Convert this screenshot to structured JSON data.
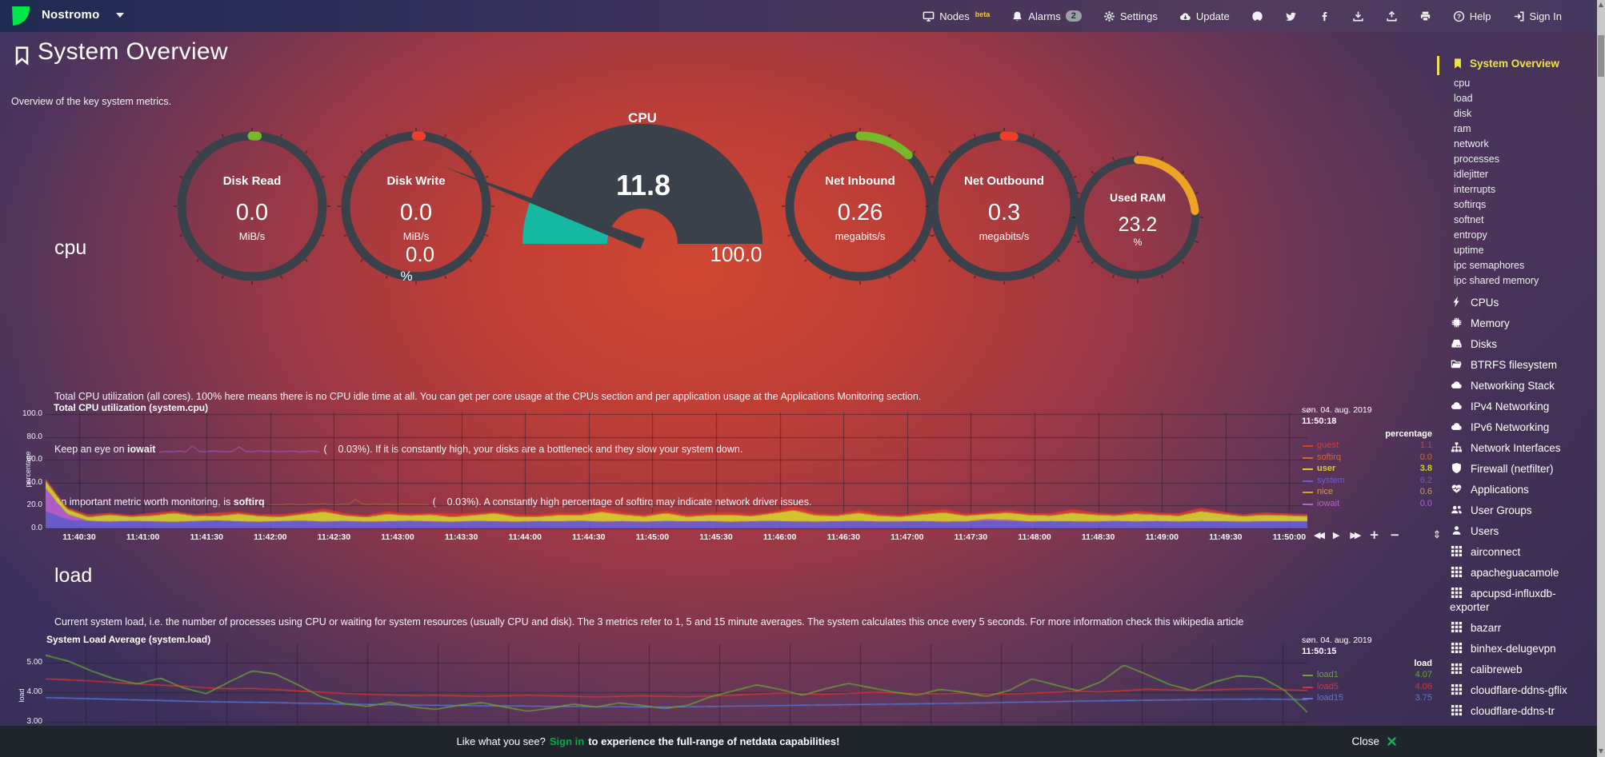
{
  "navbar": {
    "hostname": "Nostromo",
    "items": [
      {
        "label": "Nodes",
        "icon": "monitor",
        "sup": "beta"
      },
      {
        "label": "Alarms",
        "icon": "bell",
        "count": "2"
      },
      {
        "label": "Settings",
        "icon": "gear"
      },
      {
        "label": "Update",
        "icon": "cloud-down"
      },
      {
        "icon": "github"
      },
      {
        "icon": "twitter"
      },
      {
        "icon": "facebook"
      },
      {
        "icon": "download"
      },
      {
        "icon": "upload"
      },
      {
        "icon": "print"
      },
      {
        "label": "Help",
        "icon": "question"
      },
      {
        "label": "Sign In",
        "icon": "signin"
      }
    ]
  },
  "header": {
    "title": "System Overview",
    "subtitle": "Overview of the key system metrics."
  },
  "gauges": [
    {
      "type": "ring",
      "title": "Disk Read",
      "value": "0.0",
      "unit": "MiB/s",
      "color": "#76b82a",
      "fraction": 0.012
    },
    {
      "type": "ring",
      "title": "Disk Write",
      "value": "0.0",
      "unit": "MiB/s",
      "color": "#ee4028",
      "fraction": 0.012
    },
    {
      "type": "gauge",
      "title": "CPU",
      "value": "11.8",
      "unit": "%",
      "min": "0.0",
      "max": "100.0",
      "color": "#17b8a2",
      "fraction": 0.118
    },
    {
      "type": "ring",
      "title": "Net Inbound",
      "value": "0.26",
      "unit": "megabits/s",
      "color": "#76b82a",
      "fraction": 0.12
    },
    {
      "type": "ring",
      "title": "Net Outbound",
      "value": "0.3",
      "unit": "megabits/s",
      "color": "#ee4028",
      "fraction": 0.022
    },
    {
      "type": "ring",
      "title": "Used RAM",
      "value": "23.2",
      "unit": "%",
      "color": "#eda324",
      "fraction": 0.232,
      "small": true
    }
  ],
  "sections": {
    "cpu": {
      "heading": "cpu",
      "line1": "Total CPU utilization (all cores). 100% here means there is no CPU idle time at all. You can get per core usage at the CPUs section and per application usage at the Applications Monitoring section.",
      "line2": {
        "prefix": "Keep an eye on ",
        "metric": "iowait",
        "suffix": "(    0.03%). If it is constantly high, your disks are a bottleneck and they slow your system down."
      },
      "line3": {
        "prefix": "An important metric worth monitoring, is ",
        "metric": "softirq",
        "suffix": "(    0.03%). A constantly high percentage of softirq may indicate network driver issues."
      },
      "iowait_spark": {
        "color": "#b75fd1",
        "samples": [
          0.3,
          0.5,
          0.4,
          0.6,
          0.4,
          2.6,
          0.5,
          0.4,
          0.7,
          0.5,
          0.4,
          0.6,
          2.2,
          0.5,
          0.4,
          0.8,
          0.5,
          0.6,
          0.4,
          0.5,
          0.7,
          0.4,
          0.5,
          0.6,
          0.4
        ]
      },
      "softirq_spark": {
        "color": "#cf6a2c",
        "samples": [
          0.3,
          0.4,
          0.3,
          0.5,
          0.4,
          0.3,
          0.5,
          0.4,
          0.6,
          0.4,
          0.3,
          0.5,
          0.4,
          2.4,
          0.5,
          0.4,
          0.6,
          0.4,
          0.5,
          0.3,
          0.6,
          0.4,
          0.5,
          0.4,
          0.3
        ]
      }
    },
    "load": {
      "heading": "load",
      "line1": "Current system load, i.e. the number of processes using CPU or waiting for system resources (usually CPU and disk). The 3 metrics refer to 1, 5 and 15 minute averages. The system calculates this once every 5 seconds. For more information check this wikipedia article"
    }
  },
  "chart_data": [
    {
      "type": "area",
      "title": "Total CPU utilization (system.cpu)",
      "axis_label": "percentage",
      "legend_header": "percentage",
      "date": "søn. 04. aug. 2019",
      "time": "11:50:18",
      "ylim": [
        0,
        100
      ],
      "yticks": [
        "100.0",
        "80.0",
        "60.0",
        "40.0",
        "20.0",
        "0.0"
      ],
      "x_labels": [
        "11:40:30",
        "11:41:00",
        "11:41:30",
        "11:42:00",
        "11:42:30",
        "11:43:00",
        "11:43:30",
        "11:44:00",
        "11:44:30",
        "11:45:00",
        "11:45:30",
        "11:46:00",
        "11:46:30",
        "11:47:00",
        "11:47:30",
        "11:48:00",
        "11:48:30",
        "11:49:00",
        "11:49:30",
        "11:50:00"
      ],
      "stack_order": [
        "system",
        "iowait",
        "user",
        "nice",
        "softirq",
        "guest"
      ],
      "toolbox": [
        "backward",
        "play",
        "forward",
        "zoom-in",
        "zoom-out",
        "resize"
      ],
      "series": [
        {
          "name": "guest",
          "color": "#e0392e",
          "value": "1.1",
          "samples": [
            1.4,
            0.9,
            1.6,
            1.1,
            0.8,
            1.9,
            1.2,
            0.9,
            2.6,
            1.3,
            1.0,
            1.7,
            1.1,
            2.2,
            1.4,
            0.9,
            1.8,
            1.2,
            1.0,
            2.4,
            1.3,
            0.9,
            1.6,
            1.1,
            1.9,
            1.2,
            2.8,
            1.5,
            1.0,
            1.7,
            1.1,
            1.4,
            2.1,
            1.2,
            0.9,
            2.9,
            1.4,
            1.0,
            1.8,
            1.2,
            0.9,
            1.6,
            2.3,
            1.3,
            1.0,
            1.7,
            1.2,
            1.5,
            2.6,
            1.4,
            1.0,
            1.8,
            1.3,
            1.6,
            2.4,
            1.5,
            1.1,
            1.7,
            1.2,
            1.3
          ]
        },
        {
          "name": "softirq",
          "color": "#cf6a2c",
          "value": "0.0",
          "samples": [
            0.3,
            0.2,
            0.3,
            0.2,
            0.3,
            0.2,
            0.3,
            0.2,
            0.3,
            0.2
          ]
        },
        {
          "name": "user",
          "color": "#d6cf2e",
          "value": "3.8",
          "bold": true,
          "samples": [
            6.5,
            4.2,
            3.2,
            5.8,
            3.6,
            4.8,
            7.5,
            4.2,
            3.5,
            6.4,
            4.8,
            3.6,
            5.5,
            8.5,
            4.6,
            3.8,
            6.2,
            4.4,
            5.6,
            3.9,
            4.8,
            6.8,
            4.2,
            3.6,
            5.2,
            4.6,
            8.2,
            5.4,
            4.2,
            6.6,
            3.8,
            4.9,
            5.8,
            4.3,
            6.4,
            9.6,
            5.2,
            4.4,
            6.8,
            4.6,
            3.9,
            5.6,
            7.8,
            4.8,
            4.2,
            6.2,
            5.4,
            4.6,
            7.2,
            5.8,
            4.4,
            6.6,
            5.2,
            4.8,
            8.4,
            6.2,
            4.6,
            5.4,
            4.9,
            4.2
          ]
        },
        {
          "name": "system",
          "color": "#6a5ed6",
          "value": "6.2",
          "samples": [
            15,
            7.5,
            6.2,
            5.8,
            6.4,
            6.0,
            5.6,
            6.3,
            6.8,
            6.1,
            5.7,
            6.2,
            6.6,
            5.9,
            6.3,
            5.8,
            6.1,
            6.5,
            6.0,
            5.7,
            6.4,
            6.1,
            5.8,
            6.3,
            6.0,
            6.6,
            5.9,
            6.2,
            5.8,
            6.4,
            6.0,
            6.3,
            5.7,
            6.1,
            6.5,
            6.0,
            5.8,
            6.2,
            6.4,
            5.9,
            6.1,
            6.3,
            5.8,
            6.0,
            6.5,
            6.2,
            5.9,
            6.3,
            6.1,
            5.8,
            6.4,
            6.0,
            6.2,
            5.9,
            6.3,
            6.1,
            5.8,
            6.2,
            6.0,
            6.2
          ]
        },
        {
          "name": "nice",
          "color": "#d8a02c",
          "value": "0.6",
          "samples": [
            0.5,
            0.4,
            0.6,
            0.5,
            0.4,
            0.5,
            0.6,
            0.4,
            0.5,
            0.6,
            0.5,
            0.4,
            0.6,
            0.5,
            0.4,
            0.5,
            0.6,
            0.5,
            0.4,
            0.5
          ]
        },
        {
          "name": "iowait",
          "color": "#b75fd1",
          "value": "0.0",
          "samples": [
            20,
            5,
            0.4,
            0.2,
            0.1,
            0.2,
            0.1,
            0.1,
            0.2,
            0.1,
            0.1,
            0.2,
            0.1,
            0.1,
            0.2,
            0.1,
            0.1,
            0.1,
            0.2,
            0.1,
            0.1,
            0.2,
            0.1,
            0.1,
            0.2,
            0.1,
            0.1,
            0.2,
            0.1,
            0.1,
            0.2,
            0.1,
            0.1,
            0.2,
            0.1,
            0.1,
            0.2,
            0.1,
            0.1,
            0.2,
            0.1,
            0.1,
            0.2,
            0.1,
            1.6,
            1.2,
            0.2,
            0.1,
            0.1,
            0.2,
            0.1,
            0.1,
            0.2,
            0.1,
            0.1,
            0.2,
            0.1,
            0.1,
            0.2,
            0.1
          ]
        }
      ]
    },
    {
      "type": "line",
      "title": "System Load Average (system.load)",
      "axis_label": "load",
      "legend_header": "load",
      "date": "søn. 04. aug. 2019",
      "time": "11:50:15",
      "ylim": [
        2.9,
        5.6
      ],
      "yticks": [
        "5.00",
        "4.00",
        "3.00"
      ],
      "series": [
        {
          "name": "load1",
          "color": "#69a832",
          "value": "4.07",
          "samples": [
            5.25,
            5.05,
            4.72,
            4.45,
            4.28,
            4.48,
            4.15,
            3.95,
            4.35,
            4.72,
            4.62,
            4.25,
            3.85,
            3.62,
            3.52,
            3.66,
            3.5,
            3.42,
            3.56,
            3.65,
            3.5,
            3.36,
            3.46,
            3.6,
            3.5,
            3.64,
            3.55,
            3.45,
            3.56,
            3.85,
            4.05,
            4.25,
            4.1,
            3.9,
            4.12,
            4.3,
            4.15,
            4.0,
            3.9,
            4.1,
            4.0,
            3.86,
            4.06,
            4.45,
            4.25,
            4.05,
            4.35,
            4.92,
            4.6,
            4.26,
            4.06,
            4.36,
            4.56,
            4.5,
            4.07,
            3.32
          ]
        },
        {
          "name": "load5",
          "color": "#d8352e",
          "value": "4.06",
          "samples": [
            4.45,
            4.42,
            4.38,
            4.33,
            4.28,
            4.24,
            4.2,
            4.15,
            4.12,
            4.13,
            4.09,
            4.04,
            4.0,
            3.96,
            3.93,
            3.91,
            3.89,
            3.9,
            3.88,
            3.86,
            3.88,
            3.9,
            3.88,
            3.86,
            3.84,
            3.86,
            3.88,
            3.86,
            3.85,
            3.87,
            3.9,
            3.94,
            3.97,
            3.95,
            3.93,
            3.96,
            4.0,
            3.98,
            3.96,
            3.95,
            3.97,
            3.95,
            3.94,
            3.97,
            4.0,
            4.03,
            4.01,
            4.05,
            4.1,
            4.08,
            4.06,
            4.08,
            4.11,
            4.12,
            4.08,
            4.06
          ]
        },
        {
          "name": "load15",
          "color": "#5577d8",
          "value": "3.75",
          "samples": [
            3.82,
            3.8,
            3.78,
            3.76,
            3.74,
            3.72,
            3.7,
            3.68,
            3.67,
            3.66,
            3.65,
            3.63,
            3.62,
            3.6,
            3.59,
            3.58,
            3.57,
            3.56,
            3.55,
            3.54,
            3.54,
            3.53,
            3.52,
            3.52,
            3.51,
            3.51,
            3.5,
            3.5,
            3.51,
            3.52,
            3.53,
            3.54,
            3.55,
            3.56,
            3.57,
            3.58,
            3.59,
            3.6,
            3.61,
            3.62,
            3.63,
            3.64,
            3.66,
            3.67,
            3.68,
            3.7,
            3.71,
            3.72,
            3.73,
            3.74,
            3.75,
            3.76,
            3.76,
            3.77,
            3.76,
            3.75
          ]
        }
      ]
    }
  ],
  "sidebar": {
    "active_label": "System Overview",
    "sub_items": [
      "cpu",
      "load",
      "disk",
      "ram",
      "network",
      "processes",
      "idlejitter",
      "interrupts",
      "softirqs",
      "softnet",
      "entropy",
      "uptime",
      "ipc semaphores",
      "ipc shared memory"
    ],
    "sections": [
      {
        "label": "CPUs",
        "icon": "bolt"
      },
      {
        "label": "Memory",
        "icon": "chip"
      },
      {
        "label": "Disks",
        "icon": "hdd"
      },
      {
        "label": "BTRFS filesystem",
        "icon": "folder"
      },
      {
        "label": "Networking Stack",
        "icon": "cloud"
      },
      {
        "label": "IPv4 Networking",
        "icon": "cloud"
      },
      {
        "label": "IPv6 Networking",
        "icon": "cloud"
      },
      {
        "label": "Network Interfaces",
        "icon": "sitemap"
      },
      {
        "label": "Firewall (netfilter)",
        "icon": "shield"
      },
      {
        "label": "Applications",
        "icon": "heartbeat"
      },
      {
        "label": "User Groups",
        "icon": "users"
      },
      {
        "label": "Users",
        "icon": "user"
      },
      {
        "label": "airconnect",
        "icon": "grid"
      },
      {
        "label": "apacheguacamole",
        "icon": "grid"
      },
      {
        "label": "apcupsd-influxdb-exporter",
        "icon": "grid"
      },
      {
        "label": "bazarr",
        "icon": "grid"
      },
      {
        "label": "binhex-delugevpn",
        "icon": "grid"
      },
      {
        "label": "calibreweb",
        "icon": "grid"
      },
      {
        "label": "cloudflare-ddns-gflix",
        "icon": "grid"
      },
      {
        "label": "cloudflare-ddns-tr",
        "icon": "grid"
      }
    ],
    "close_label": "Close"
  },
  "footer": {
    "prefix": "Like what you see?",
    "signin": "Sign in",
    "suffix": "to experience the full-range of netdata capabilities!"
  },
  "colors": {
    "accent_green": "#00ab44",
    "logo_green": "#00e54c",
    "active_yellow": "#f0e24a",
    "beta_yellow": "#f6c945",
    "gauge_track": "#3a414b",
    "gauge_teal": "#17b8a2"
  }
}
